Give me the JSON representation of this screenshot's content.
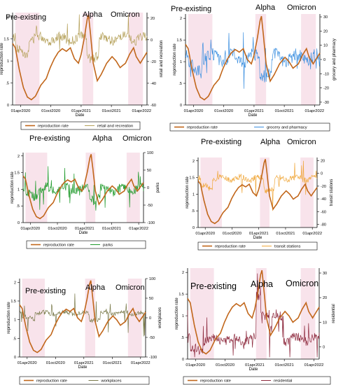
{
  "colors": {
    "reproduction": "#C1661A",
    "shade": "#F6D9E4",
    "axis": "#000000",
    "legend_border": "#000000"
  },
  "period_labels": [
    "Pre-existing",
    "Alpha",
    "Omicron"
  ],
  "chart_data": [
    {
      "type": "line",
      "panel": "retail",
      "xlabel": "Date",
      "x_ticks": [
        "01apr2020",
        "01oct2020",
        "01apr2021",
        "01oct2021",
        "01apr2022"
      ],
      "ylabel_left": "reproduction rate",
      "ylabel_right": "retail and recreation",
      "yleft_ticks": [
        "0",
        ".5",
        "1",
        "1.5",
        "2"
      ],
      "yleft_range": [
        0,
        2.1
      ],
      "yright_ticks": [
        "-60",
        "-40",
        "-20",
        "0",
        "20"
      ],
      "yright_range": [
        -60,
        25
      ],
      "series": [
        {
          "name": "reproduction rate",
          "color": "#C1661A",
          "axis": "left"
        },
        {
          "name": "retail and recreation",
          "color": "#B5A15A",
          "axis": "right",
          "level": 0.72,
          "amp": 0.12,
          "noise": 0.1
        }
      ]
    },
    {
      "type": "line",
      "panel": "grocery",
      "xlabel": "Date",
      "x_ticks": [
        "01apr2020",
        "01oct2020",
        "01apr2021",
        "01oct2021",
        "01apr2022"
      ],
      "ylabel_left": "reproduction rate",
      "ylabel_right": "grocery and pharmacy",
      "yleft_ticks": [
        "0",
        ".5",
        "1",
        "1.5",
        "2"
      ],
      "yleft_range": [
        0,
        2.1
      ],
      "yright_ticks": [
        "-30",
        "-20",
        "-10",
        "0",
        "10",
        "20",
        "30"
      ],
      "yright_range": [
        -32,
        32
      ],
      "series": [
        {
          "name": "reproduction rate",
          "color": "#C1661A",
          "axis": "left"
        },
        {
          "name": "grocery and pharmacy",
          "color": "#3B8FE0",
          "axis": "right",
          "level": 0.52,
          "amp": 0.1,
          "noise": 0.14
        }
      ]
    },
    {
      "type": "line",
      "panel": "parks",
      "xlabel": "Date",
      "x_ticks": [
        "01apr2020",
        "01oct2020",
        "01apr2021",
        "01oct2021",
        "01apr2022"
      ],
      "ylabel_left": "reproduction rate",
      "ylabel_right": "parks",
      "yleft_ticks": [
        "0",
        ".5",
        "1",
        "1.5",
        "2"
      ],
      "yleft_range": [
        0,
        2.1
      ],
      "yright_ticks": [
        "-100",
        "-50",
        "0",
        "50",
        "100"
      ],
      "yright_range": [
        -100,
        100
      ],
      "series": [
        {
          "name": "reproduction rate",
          "color": "#C1661A",
          "axis": "left"
        },
        {
          "name": "parks",
          "color": "#1E9A2A",
          "axis": "right",
          "level": 0.48,
          "amp": 0.08,
          "noise": 0.12
        }
      ]
    },
    {
      "type": "line",
      "panel": "transit",
      "xlabel": "Date",
      "x_ticks": [
        "01apr2020",
        "01oct2020",
        "01apr2021",
        "01oct2021",
        "01apr2022"
      ],
      "ylabel_left": "reproduction rate",
      "ylabel_right": "transit stations",
      "yleft_ticks": [
        "0",
        ".5",
        "1",
        "1.5",
        "2"
      ],
      "yleft_range": [
        0,
        2.1
      ],
      "yright_ticks": [
        "-80",
        "-60",
        "-40",
        "-20",
        "0",
        "20"
      ],
      "yright_range": [
        -85,
        25
      ],
      "series": [
        {
          "name": "reproduction rate",
          "color": "#C1661A",
          "axis": "left"
        },
        {
          "name": "transit stations",
          "color": "#F0A73A",
          "axis": "right",
          "level": 0.7,
          "amp": 0.1,
          "noise": 0.08
        }
      ]
    },
    {
      "type": "line",
      "panel": "workplaces",
      "xlabel": "Date",
      "x_ticks": [
        "01apr2020",
        "01oct2020",
        "01apr2021",
        "01oct2021",
        "01apr2022"
      ],
      "ylabel_left": "reproduction rate",
      "ylabel_right": "workplaces",
      "yleft_ticks": [
        "0",
        ".5",
        "1",
        "1.5",
        "2"
      ],
      "yleft_range": [
        0,
        2.1
      ],
      "yright_ticks": [
        "-100",
        "-50",
        "0",
        "50",
        "100"
      ],
      "yright_range": [
        -100,
        100
      ],
      "series": [
        {
          "name": "reproduction rate",
          "color": "#C1661A",
          "axis": "left"
        },
        {
          "name": "workplaces",
          "color": "#7A7A4A",
          "axis": "right",
          "level": 0.56,
          "amp": 0.05,
          "noise": 0.05
        }
      ]
    },
    {
      "type": "line",
      "panel": "residential",
      "xlabel": "Date",
      "x_ticks": [
        "01apr2020",
        "01oct2020",
        "01apr2021",
        "01oct2021",
        "01apr2022"
      ],
      "ylabel_left": "reproduction rate",
      "ylabel_right": "residential",
      "yleft_ticks": [
        "0",
        ".5",
        "1",
        "1.5",
        "2"
      ],
      "yleft_range": [
        0,
        2.1
      ],
      "yright_ticks": [
        "0",
        "10",
        "20",
        "30"
      ],
      "yright_range": [
        -5,
        32
      ],
      "series": [
        {
          "name": "reproduction rate",
          "color": "#C1661A",
          "axis": "left"
        },
        {
          "name": "residential",
          "color": "#8E2A3E",
          "axis": "right",
          "level": 0.22,
          "amp": 0.1,
          "noise": 0.1
        }
      ]
    }
  ]
}
